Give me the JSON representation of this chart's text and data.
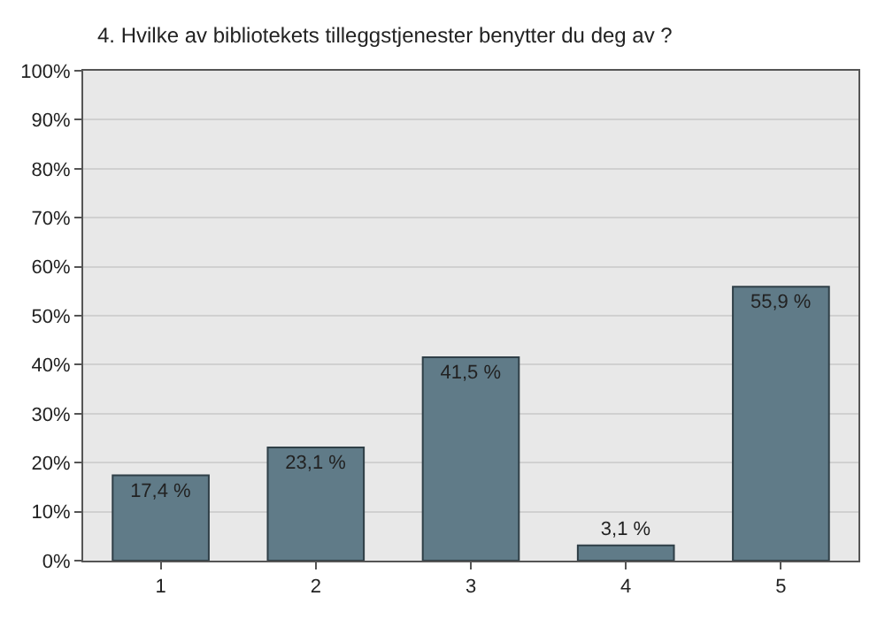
{
  "chart_data": {
    "type": "bar",
    "title": "4. Hvilke av bibliotekets tilleggstjenester benytter du deg av ?",
    "categories": [
      "1",
      "2",
      "3",
      "4",
      "5"
    ],
    "values": [
      17.4,
      23.1,
      41.5,
      3.1,
      55.9
    ],
    "value_labels": [
      "17,4 %",
      "23,1 %",
      "41,5 %",
      "3,1 %",
      "55,9 %"
    ],
    "color": "#607b88",
    "ylim": [
      0,
      100
    ],
    "yticks": [
      {
        "value": 0,
        "label": "0%"
      },
      {
        "value": 10,
        "label": "10%"
      },
      {
        "value": 20,
        "label": "20%"
      },
      {
        "value": 30,
        "label": "30%"
      },
      {
        "value": 40,
        "label": "40%"
      },
      {
        "value": 50,
        "label": "50%"
      },
      {
        "value": 60,
        "label": "60%"
      },
      {
        "value": 70,
        "label": "70%"
      },
      {
        "value": 80,
        "label": "80%"
      },
      {
        "value": 90,
        "label": "90%"
      },
      {
        "value": 100,
        "label": "100%"
      }
    ],
    "grid": "y"
  }
}
